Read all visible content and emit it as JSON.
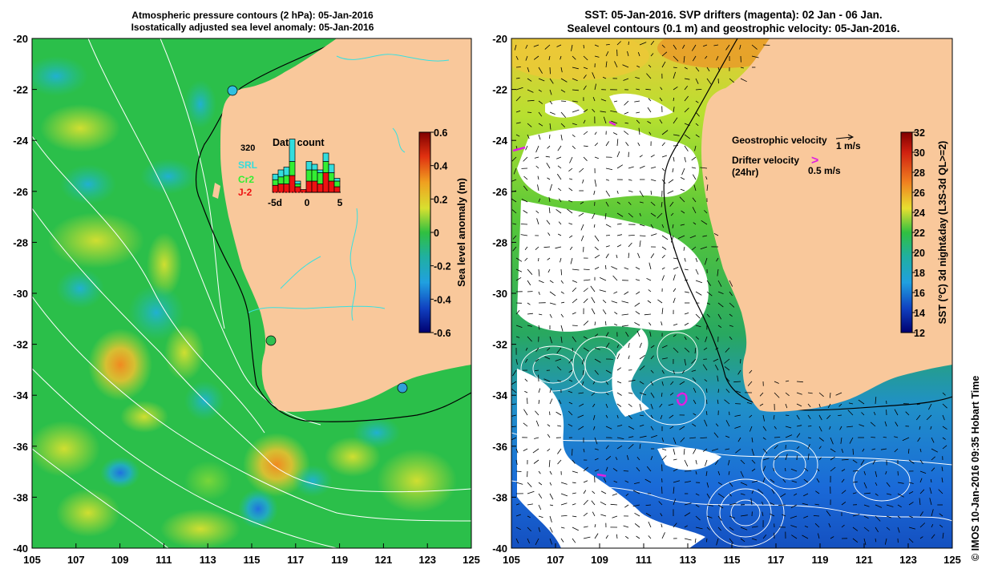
{
  "left_panel": {
    "title_line1": "Atmospheric pressure contours (2 hPa): 05-Jan-2016",
    "title_line2": "Isostatically adjusted sea level anomaly: 05-Jan-2016",
    "x_ticks": [
      "105",
      "107",
      "109",
      "111",
      "113",
      "115",
      "117",
      "119",
      "121",
      "123",
      "125"
    ],
    "y_ticks": [
      "-20",
      "-22",
      "-24",
      "-26",
      "-28",
      "-30",
      "-32",
      "-34",
      "-36",
      "-38",
      "-40"
    ],
    "colorbar": {
      "label": "Sea level anomaly (m)",
      "ticks": [
        "0.6",
        "0.4",
        "0.2",
        "0",
        "-0.2",
        "-0.4",
        "-0.6"
      ]
    },
    "data_count": {
      "title": "Data count",
      "max_label": "320",
      "series": [
        {
          "name": "SRL",
          "color": "#33dddd"
        },
        {
          "name": "Cr2",
          "color": "#33ee33"
        },
        {
          "name": "J-2",
          "color": "#ee1111"
        }
      ],
      "x_ticks": [
        "-5d",
        "0",
        "5"
      ],
      "bars": [
        {
          "srl": 20,
          "cr2": 20,
          "j2": 25
        },
        {
          "srl": 25,
          "cr2": 25,
          "j2": 30
        },
        {
          "srl": 30,
          "cr2": 30,
          "j2": 30
        },
        {
          "srl": 80,
          "cr2": 50,
          "j2": 60
        },
        {
          "srl": 10,
          "cr2": 10,
          "j2": 20
        },
        {
          "srl": 0,
          "cr2": 0,
          "j2": 10
        },
        {
          "srl": 30,
          "cr2": 40,
          "j2": 40
        },
        {
          "srl": 20,
          "cr2": 40,
          "j2": 40
        },
        {
          "srl": 10,
          "cr2": 40,
          "j2": 30
        },
        {
          "srl": 30,
          "cr2": 40,
          "j2": 70
        },
        {
          "srl": 30,
          "cr2": 30,
          "j2": 40
        },
        {
          "srl": 10,
          "cr2": 20,
          "j2": 20
        }
      ]
    }
  },
  "right_panel": {
    "title_line1": "SST: 05-Jan-2016. SVP drifters (magenta): 02 Jan - 06 Jan.",
    "title_line2": "Sealevel contours (0.1 m) and geostrophic velocity: 05-Jan-2016.",
    "x_ticks": [
      "105",
      "107",
      "109",
      "111",
      "113",
      "115",
      "117",
      "119",
      "121",
      "123",
      "125"
    ],
    "y_ticks": [
      "-20",
      "-22",
      "-24",
      "-26",
      "-28",
      "-30",
      "-32",
      "-34",
      "-36",
      "-38",
      "-40"
    ],
    "colorbar": {
      "label": "SST (°C) 3d night&day (L3S-3d QL>=2)",
      "ticks": [
        "32",
        "30",
        "28",
        "26",
        "24",
        "22",
        "20",
        "18",
        "16",
        "14",
        "12"
      ]
    },
    "legend": {
      "geo_label": "Geostrophic velocity",
      "geo_scale": "1 m/s",
      "drifter_label1": "Drifter velocity",
      "drifter_label2": "(24hr)",
      "drifter_symbol": ">",
      "drifter_scale": "0.5 m/s"
    }
  },
  "credit": "© IMOS 10-Jan-2016 09:35 Hobart Time",
  "colors": {
    "land": "#f9c89b",
    "sla_base": "#2bbf4a",
    "sst_cold": "#1860c8",
    "contour": "#ffffff",
    "river": "#38e0e0",
    "drifter": "#e020e0"
  }
}
